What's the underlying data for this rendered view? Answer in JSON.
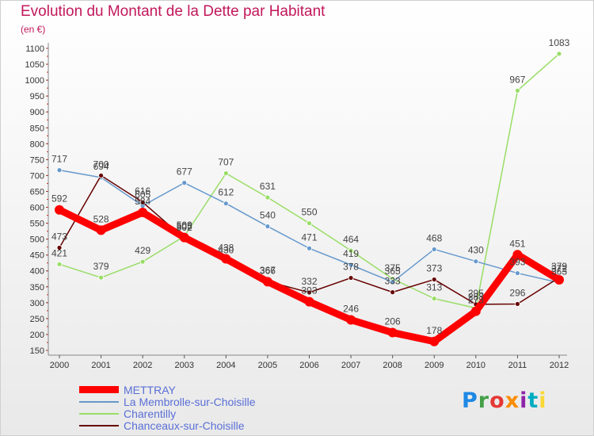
{
  "header": {
    "title": "Evolution du Montant de la Dette par Habitant",
    "subtitle": "(en €)"
  },
  "logo": {
    "text": "Proxiti",
    "colors": [
      "#1e88e5",
      "#43a047",
      "#e53935",
      "#fb8c00",
      "#8e24aa",
      "#00acc1",
      "#fdd835"
    ]
  },
  "chart_data": {
    "type": "line",
    "title": "Evolution du Montant de la Dette par Habitant",
    "subtitle": "(en €)",
    "x": [
      2000,
      2001,
      2002,
      2003,
      2004,
      2005,
      2006,
      2007,
      2008,
      2009,
      2010,
      2011,
      2012
    ],
    "ylim": [
      150,
      1100
    ],
    "yticks": [
      150,
      200,
      250,
      300,
      350,
      400,
      450,
      500,
      550,
      600,
      650,
      700,
      750,
      800,
      850,
      900,
      950,
      1000,
      1050,
      1100
    ],
    "grid": false,
    "legend_position": "bottom-left",
    "series": [
      {
        "name": "METTRAY",
        "color": "#ff0000",
        "values": [
          592,
          528,
          584,
          505,
          438,
          366,
          303,
          246,
          206,
          178,
          273,
          451,
          372
        ]
      },
      {
        "name": "La Membrolle-sur-Choisille",
        "color": "#6699cc",
        "values": [
          717,
          694,
          605,
          677,
          612,
          540,
          471,
          419,
          365,
          468,
          430,
          393,
          363
        ]
      },
      {
        "name": "Charentilly",
        "color": "#99dd66",
        "values": [
          421,
          379,
          429,
          509,
          707,
          631,
          550,
          464,
          375,
          313,
          283,
          967,
          1083
        ]
      },
      {
        "name": "Chanceaux-sur-Choisille",
        "color": "#660000",
        "values": [
          473,
          700,
          616,
          502,
          430,
          367,
          332,
          378,
          333,
          373,
          295,
          296,
          379
        ]
      }
    ]
  }
}
